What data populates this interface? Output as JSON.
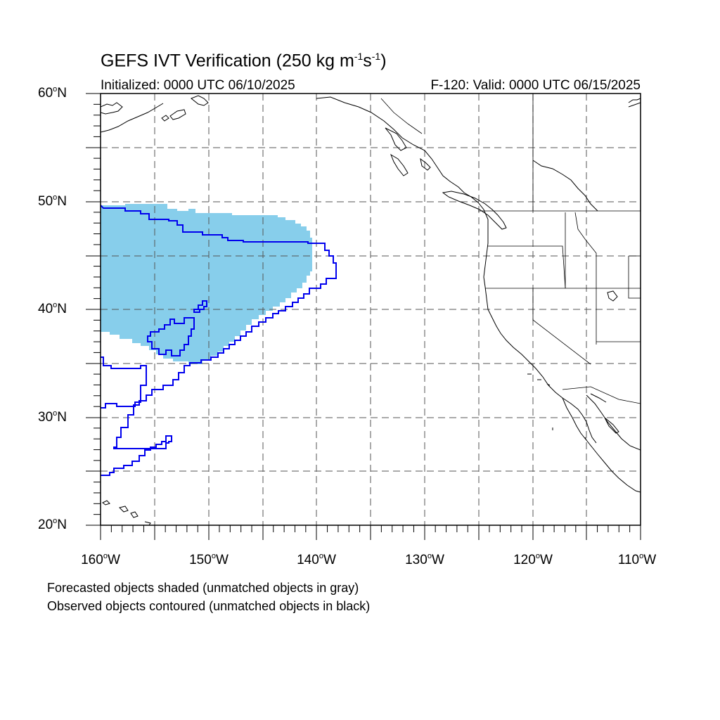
{
  "title": {
    "main": "GEFS IVT Verification (250 kg m",
    "exp1": "-1",
    "mid": "s",
    "exp2": "-1",
    "end": ")"
  },
  "initialized": "Initialized: 0000 UTC 06/10/2025",
  "valid": "F-120: Valid: 0000 UTC 06/15/2025",
  "map": {
    "lon_range": [
      -160,
      -110
    ],
    "lat_range": [
      20,
      60
    ],
    "grid": "dashed, every 5 degrees",
    "lat_labels": [
      {
        "deg": "60",
        "hem": "N"
      },
      {
        "deg": "50",
        "hem": "N"
      },
      {
        "deg": "40",
        "hem": "N"
      },
      {
        "deg": "30",
        "hem": "N"
      },
      {
        "deg": "20",
        "hem": "N"
      }
    ],
    "lon_labels": [
      {
        "deg": "160",
        "hem": "W"
      },
      {
        "deg": "150",
        "hem": "W"
      },
      {
        "deg": "140",
        "hem": "W"
      },
      {
        "deg": "130",
        "hem": "W"
      },
      {
        "deg": "120",
        "hem": "W"
      },
      {
        "deg": "110",
        "hem": "W"
      }
    ]
  },
  "colors": {
    "forecast_fill": "#87ceeb",
    "observed_contour": "#0000ee",
    "coastline": "#000000",
    "grid": "#555555"
  },
  "legend": {
    "line1": "Forecasted objects shaded (unmatched objects in gray)",
    "line2": "Observed objects contoured (unmatched objects in black)"
  }
}
